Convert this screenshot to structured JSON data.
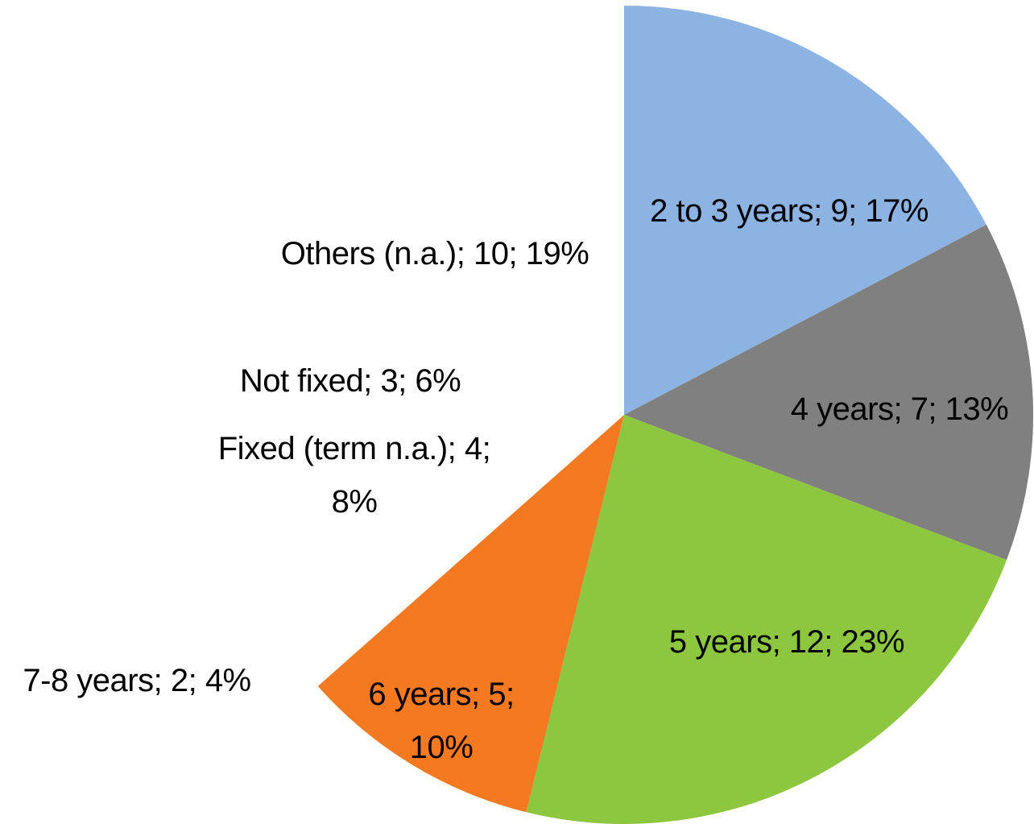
{
  "chart_data": {
    "type": "pie",
    "categories": [
      "2 to 3 years",
      "4 years",
      "5 years",
      "6 years",
      "7-8 years",
      "Fixed (term n.a.)",
      "Not fixed",
      "Others (n.a.)"
    ],
    "values": [
      9,
      7,
      12,
      5,
      2,
      4,
      3,
      10
    ],
    "value_labels": [
      "2 to 3 years; 9; 17%",
      "4 years; 7; 13%",
      "5 years; 12; 23%",
      "6 years; 5; 10%",
      "7-8 years; 2; 4%",
      "Fixed (term n.a.); 4; 8%",
      "Not fixed; 3; 6%",
      "Others (n.a.); 10; 19%"
    ],
    "colors": [
      "#8db3e2",
      "#808080",
      "#8dc63f",
      "#f47920",
      "#ffffff",
      "#ffffff",
      "#ffffff",
      "#ffffff"
    ]
  }
}
